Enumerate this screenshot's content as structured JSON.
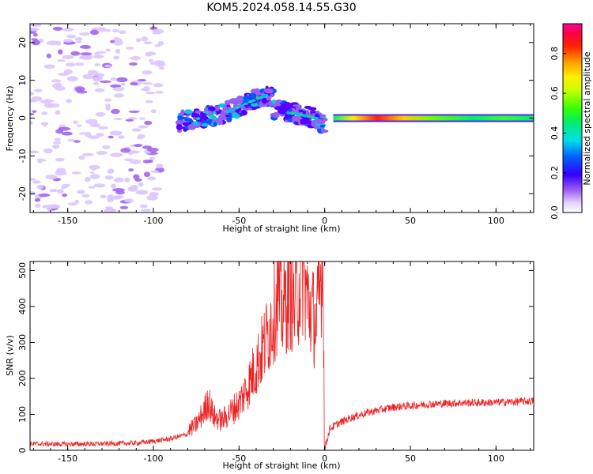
{
  "title": "KOM5.2024.058.14.55.G30",
  "colors": {
    "snr_line": "#ee2222",
    "axis": "#000000"
  },
  "chart_data": [
    {
      "type": "heatmap",
      "xlabel": "Height of straight line (km)",
      "ylabel": "Frequency (Hz)",
      "xlim": [
        -172,
        122
      ],
      "ylim": [
        -25,
        25
      ],
      "x_ticks": [
        -150,
        -100,
        -50,
        0,
        50,
        100
      ],
      "y_ticks": [
        -20,
        -10,
        0,
        10,
        20
      ],
      "colorbar": {
        "label": "Normalized spectral amplitude",
        "range": [
          0,
          0.95
        ],
        "ticks": [
          0.0,
          0.2,
          0.4,
          0.6,
          0.8
        ],
        "colormap": "rainbow (white-lavender-purple-blue-cyan-green-yellow-orange-red-magenta)"
      },
      "features": [
        {
          "x_range": [
            -172,
            -95
          ],
          "freq_range": [
            -25,
            25
          ],
          "amplitude": 0.05
        },
        {
          "x_range": [
            -85,
            -30
          ],
          "freq_trend": [
            [
              -85,
              -1
            ],
            [
              -60,
              1
            ],
            [
              -45,
              4
            ],
            [
              -35,
              6
            ]
          ],
          "amplitude_max": 0.4
        },
        {
          "x_range": [
            -30,
            0
          ],
          "freq_trend": [
            [
              -30,
              2
            ],
            [
              -15,
              1
            ],
            [
              -5,
              0
            ],
            [
              0,
              -2
            ]
          ],
          "amplitude_max": 0.3
        },
        {
          "x_range": [
            5,
            122
          ],
          "frequency": 0,
          "amplitude_max": 0.9
        }
      ]
    },
    {
      "type": "line",
      "xlabel": "Height of straight line (km)",
      "ylabel": "SNR (v/v)",
      "xlim": [
        -172,
        122
      ],
      "ylim": [
        0,
        525
      ],
      "x_ticks": [
        -150,
        -100,
        -50,
        0,
        50,
        100
      ],
      "y_ticks": [
        0,
        100,
        200,
        300,
        400,
        500
      ],
      "series": [
        {
          "points": [
            [
              -172,
              18
            ],
            [
              -150,
              17
            ],
            [
              -130,
              18
            ],
            [
              -110,
              20
            ],
            [
              -100,
              25
            ],
            [
              -90,
              32
            ],
            [
              -80,
              45
            ],
            [
              -75,
              60
            ],
            [
              -70,
              95
            ],
            [
              -68,
              120
            ],
            [
              -65,
              80
            ],
            [
              -60,
              70
            ],
            [
              -55,
              90
            ],
            [
              -50,
              110
            ],
            [
              -45,
              150
            ],
            [
              -40,
              200
            ],
            [
              -35,
              250
            ],
            [
              -30,
              320
            ],
            [
              -27,
              370
            ],
            [
              -25,
              330
            ],
            [
              -20,
              380
            ],
            [
              -18,
              340
            ],
            [
              -15,
              390
            ],
            [
              -13,
              430
            ],
            [
              -10,
              350
            ],
            [
              -8,
              330
            ],
            [
              -5,
              300
            ],
            [
              -3,
              360
            ],
            [
              -1,
              480
            ],
            [
              0,
              5
            ],
            [
              3,
              60
            ],
            [
              8,
              75
            ],
            [
              15,
              90
            ],
            [
              25,
              105
            ],
            [
              40,
              120
            ],
            [
              60,
              128
            ],
            [
              80,
              132
            ],
            [
              100,
              133
            ],
            [
              122,
              137
            ]
          ]
        }
      ]
    }
  ]
}
